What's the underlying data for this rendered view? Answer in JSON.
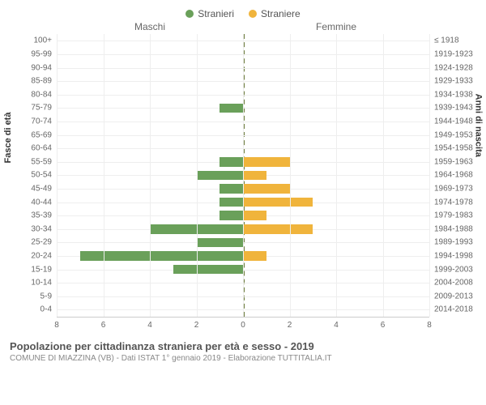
{
  "legend": {
    "male": "Stranieri",
    "female": "Straniere"
  },
  "columns": {
    "left": "Maschi",
    "right": "Femmine"
  },
  "axis_titles": {
    "left": "Fasce di età",
    "right": "Anni di nascita"
  },
  "chart": {
    "type": "bar",
    "colors": {
      "male": "#6aa05a",
      "female": "#f0b43c",
      "grid": "#eeeeee",
      "center_line": "#6b7a3a",
      "bg": "#ffffff"
    },
    "x_max": 8,
    "x_ticks": [
      8,
      6,
      4,
      2,
      0,
      2,
      4,
      6,
      8
    ],
    "rows": [
      {
        "age": "100+",
        "birth": "≤ 1918",
        "m": 0,
        "f": 0
      },
      {
        "age": "95-99",
        "birth": "1919-1923",
        "m": 0,
        "f": 0
      },
      {
        "age": "90-94",
        "birth": "1924-1928",
        "m": 0,
        "f": 0
      },
      {
        "age": "85-89",
        "birth": "1929-1933",
        "m": 0,
        "f": 0
      },
      {
        "age": "80-84",
        "birth": "1934-1938",
        "m": 0,
        "f": 0
      },
      {
        "age": "75-79",
        "birth": "1939-1943",
        "m": 1,
        "f": 0
      },
      {
        "age": "70-74",
        "birth": "1944-1948",
        "m": 0,
        "f": 0
      },
      {
        "age": "65-69",
        "birth": "1949-1953",
        "m": 0,
        "f": 0
      },
      {
        "age": "60-64",
        "birth": "1954-1958",
        "m": 0,
        "f": 0
      },
      {
        "age": "55-59",
        "birth": "1959-1963",
        "m": 1,
        "f": 2
      },
      {
        "age": "50-54",
        "birth": "1964-1968",
        "m": 2,
        "f": 1
      },
      {
        "age": "45-49",
        "birth": "1969-1973",
        "m": 1,
        "f": 2
      },
      {
        "age": "40-44",
        "birth": "1974-1978",
        "m": 1,
        "f": 3
      },
      {
        "age": "35-39",
        "birth": "1979-1983",
        "m": 1,
        "f": 1
      },
      {
        "age": "30-34",
        "birth": "1984-1988",
        "m": 4,
        "f": 3
      },
      {
        "age": "25-29",
        "birth": "1989-1993",
        "m": 2,
        "f": 0
      },
      {
        "age": "20-24",
        "birth": "1994-1998",
        "m": 7,
        "f": 1
      },
      {
        "age": "15-19",
        "birth": "1999-2003",
        "m": 3,
        "f": 0
      },
      {
        "age": "10-14",
        "birth": "2004-2008",
        "m": 0,
        "f": 0
      },
      {
        "age": "5-9",
        "birth": "2009-2013",
        "m": 0,
        "f": 0
      },
      {
        "age": "0-4",
        "birth": "2014-2018",
        "m": 0,
        "f": 0
      }
    ]
  },
  "footer": {
    "title": "Popolazione per cittadinanza straniera per età e sesso - 2019",
    "subtitle": "COMUNE DI MIAZZINA (VB) - Dati ISTAT 1° gennaio 2019 - Elaborazione TUTTITALIA.IT"
  }
}
